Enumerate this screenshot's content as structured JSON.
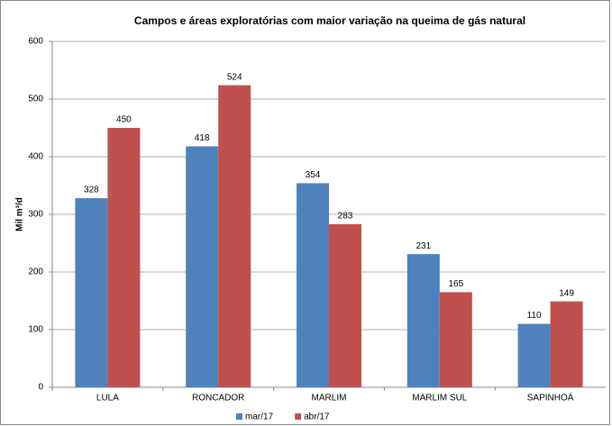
{
  "chart_data": {
    "type": "bar",
    "title": "Campos e áreas exploratórias com maior variação na queima de gás natural",
    "y_label": "Mil m³/d",
    "categories": [
      "LULA",
      "RONCADOR",
      "MARLIM",
      "MARLIM SUL",
      "SAPINHOÁ"
    ],
    "series": [
      {
        "name": "mar/17",
        "color": "#4f81bd",
        "values": [
          328,
          418,
          354,
          231,
          110
        ]
      },
      {
        "name": "abr/17",
        "color": "#c0504d",
        "values": [
          450,
          524,
          283,
          165,
          149
        ]
      }
    ],
    "ylim": [
      0,
      600
    ],
    "yticks": [
      0,
      100,
      200,
      300,
      400,
      500,
      600
    ],
    "grid": true,
    "legend": "bottom"
  }
}
